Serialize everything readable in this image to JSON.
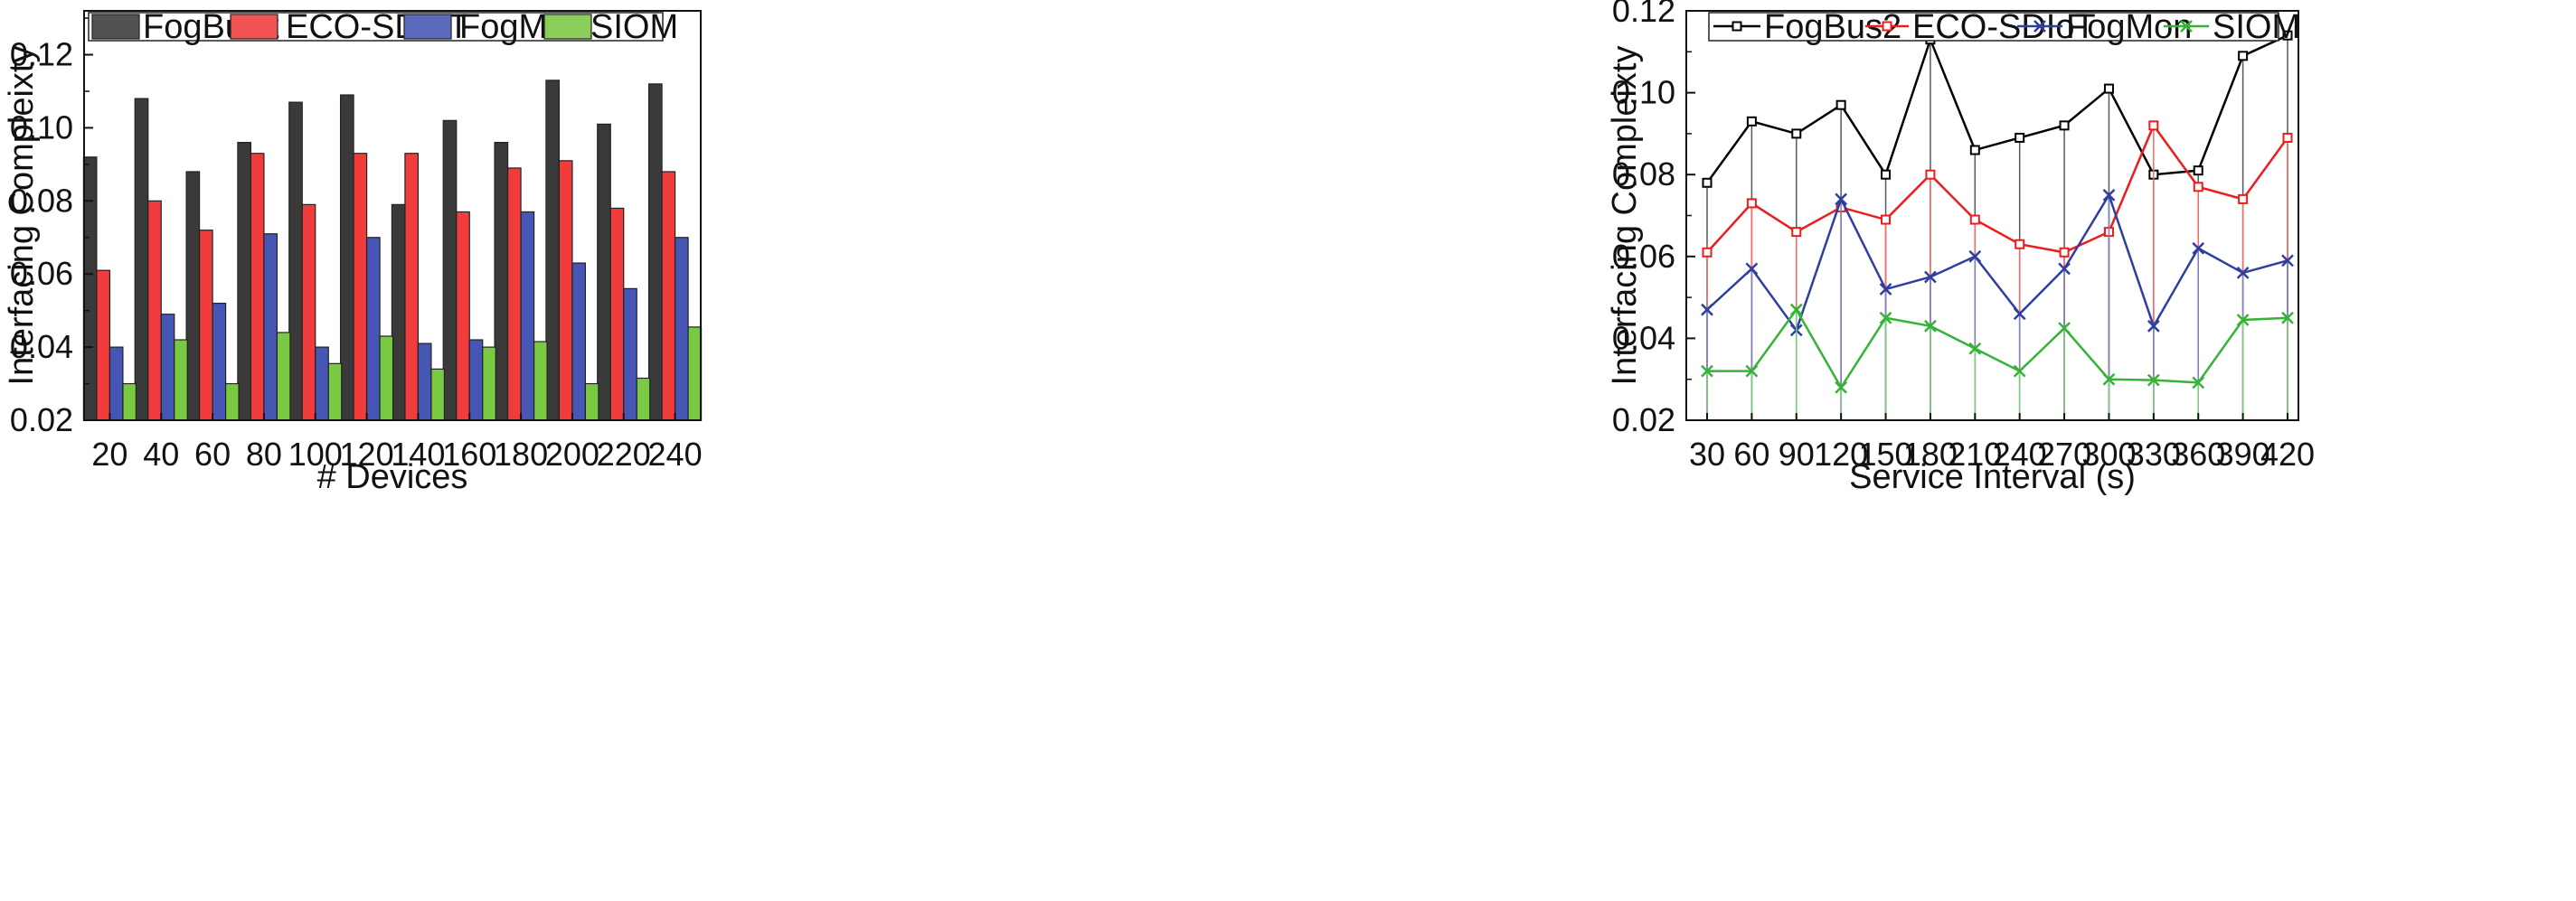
{
  "chart_data": [
    {
      "type": "bar",
      "xlabel": "# Devices",
      "ylabel": "Interfacing Compleixty",
      "categories": [
        "20",
        "40",
        "60",
        "80",
        "100",
        "120",
        "140",
        "160",
        "180",
        "200",
        "220",
        "240"
      ],
      "yticks": [
        "0.02",
        "0.04",
        "0.06",
        "0.08",
        "0.10",
        "0.12"
      ],
      "ylim": [
        0.02,
        0.132
      ],
      "legend_position": "top",
      "series": [
        {
          "name": "FogBus2",
          "color": "#3a3a3a",
          "values": [
            0.092,
            0.108,
            0.088,
            0.096,
            0.107,
            0.109,
            0.079,
            0.102,
            0.096,
            0.113,
            0.101,
            0.112
          ]
        },
        {
          "name": "ECO-SDIoT",
          "color": "#f03c3c",
          "values": [
            0.061,
            0.08,
            0.072,
            0.093,
            0.079,
            0.093,
            0.093,
            0.077,
            0.089,
            0.091,
            0.078,
            0.088
          ]
        },
        {
          "name": "FogMon",
          "color": "#4656b4",
          "values": [
            0.04,
            0.049,
            0.052,
            0.071,
            0.04,
            0.07,
            0.041,
            0.042,
            0.077,
            0.063,
            0.056,
            0.07
          ]
        },
        {
          "name": "SIOM",
          "color": "#7ac943",
          "values": [
            0.03,
            0.042,
            0.03,
            0.044,
            0.0355,
            0.043,
            0.034,
            0.04,
            0.0415,
            0.03,
            0.0315,
            0.0455
          ]
        }
      ]
    },
    {
      "type": "line",
      "xlabel": "Service Interval (s)",
      "ylabel": "Interfacing Compleixty",
      "x": [
        30,
        60,
        90,
        120,
        150,
        180,
        210,
        240,
        270,
        300,
        330,
        360,
        390,
        420
      ],
      "xticks": [
        "30",
        "60",
        "90",
        "120",
        "150",
        "180",
        "210",
        "240",
        "270",
        "300",
        "330",
        "360",
        "390",
        "420"
      ],
      "yticks": [
        "0.02",
        "0.04",
        "0.06",
        "0.08",
        "0.10",
        "0.12"
      ],
      "ylim": [
        0.02,
        0.12
      ],
      "legend_position": "top",
      "series": [
        {
          "name": "FogBus2",
          "color": "#000000",
          "marker": "square",
          "values": [
            0.078,
            0.093,
            0.09,
            0.097,
            0.08,
            0.113,
            0.086,
            0.089,
            0.092,
            0.101,
            0.08,
            0.081,
            0.109,
            0.114
          ]
        },
        {
          "name": "ECO-SDIoT",
          "color": "#ee1c1c",
          "marker": "square",
          "values": [
            0.061,
            0.073,
            0.066,
            0.072,
            0.069,
            0.08,
            0.069,
            0.063,
            0.061,
            0.066,
            0.092,
            0.077,
            0.074,
            0.089
          ]
        },
        {
          "name": "FogMon",
          "color": "#2e3fa0",
          "marker": "x",
          "values": [
            0.047,
            0.057,
            0.042,
            0.074,
            0.052,
            0.055,
            0.06,
            0.046,
            0.057,
            0.075,
            0.043,
            0.062,
            0.056,
            0.059
          ]
        },
        {
          "name": "SIOM",
          "color": "#35b335",
          "marker": "x",
          "values": [
            0.032,
            0.032,
            0.047,
            0.028,
            0.045,
            0.043,
            0.0375,
            0.032,
            0.0425,
            0.03,
            0.0298,
            0.0292,
            0.0445,
            0.045
          ]
        }
      ]
    }
  ]
}
